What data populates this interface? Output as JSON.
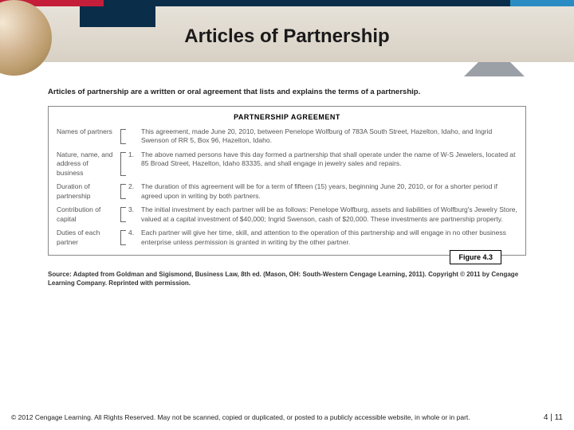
{
  "colors": {
    "red": "#c41e3a",
    "navy": "#0a2d4a",
    "lightblue": "#2b8cc4",
    "tab_gray": "#9aa0a6",
    "body_text": "#555555",
    "border": "#888888"
  },
  "title": "Articles of Partnership",
  "intro": "Articles of partnership are a written or oral agreement that lists and explains the terms of a partnership.",
  "agreement": {
    "heading": "PARTNERSHIP AGREEMENT",
    "rows": [
      {
        "label": "Names of partners",
        "num": "",
        "body": "This agreement, made June 20, 2010, between Penelope Wolfburg of 783A South Street, Hazelton, Idaho, and Ingrid Swenson of RR 5, Box 96, Hazelton, Idaho."
      },
      {
        "label": "Nature, name, and address of business",
        "num": "1.",
        "body": "The above named persons have this day formed a partnership that shall operate under the name of W-S Jewelers, located at 85 Broad Street, Hazelton, Idaho 83335, and shall engage in jewelry sales and repairs."
      },
      {
        "label": "Duration of partnership",
        "num": "2.",
        "body": "The duration of this agreement will be for a term of fifteen (15) years, beginning June 20, 2010, or for a shorter period if agreed upon in writing by both partners."
      },
      {
        "label": "Contribution of capital",
        "num": "3.",
        "body": "The initial investment by each partner will be as follows: Penelope Wolfburg, assets and liabilities of Wolfburg's Jewelry Store, valued at a capital investment of $40,000; Ingrid Swenson, cash of $20,000. These investments are partnership property."
      },
      {
        "label": "Duties of each partner",
        "num": "4.",
        "body": "Each partner will give her time, skill, and attention to the operation of this partnership and will engage in no other business enterprise unless permission is granted in writing by the other partner."
      }
    ]
  },
  "figure_label": "Figure 4.3",
  "source": "Source: Adapted from Goldman and Sigismond, Business Law, 8th ed. (Mason, OH: South-Western Cengage Learning, 2011). Copyright © 2011 by Cengage Learning Company. Reprinted with permission.",
  "footer": {
    "copyright": "© 2012 Cengage Learning. All Rights Reserved. May not be scanned, copied or duplicated, or posted to a publicly accessible website, in whole or in part.",
    "page": "4 | 11"
  }
}
